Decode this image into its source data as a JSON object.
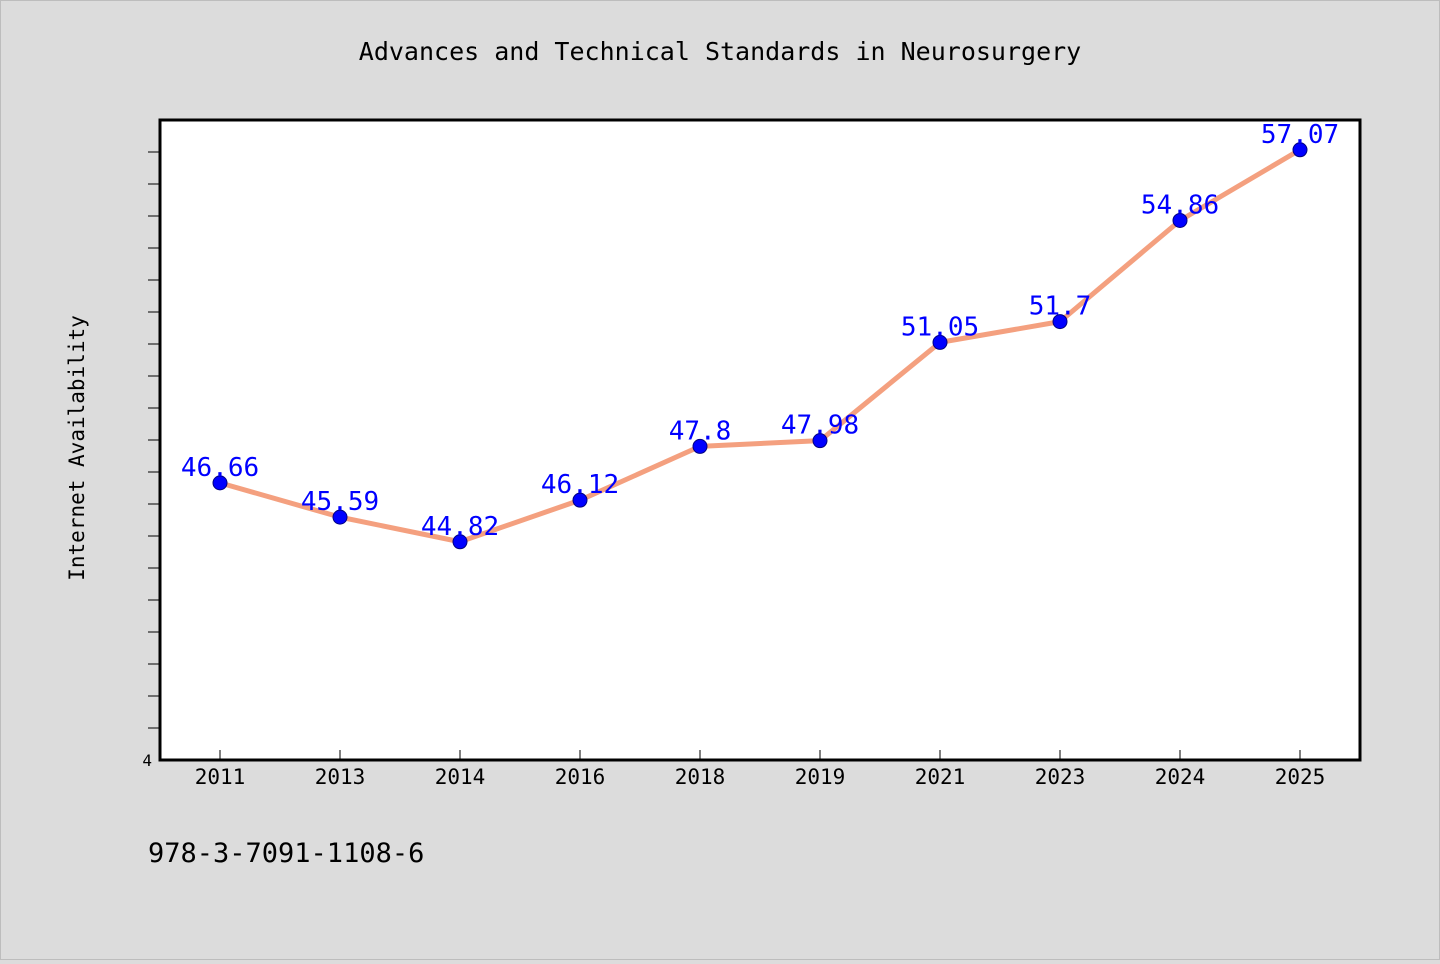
{
  "chart_data": {
    "type": "line",
    "title": "Advances and Technical Standards in Neurosurgery",
    "xlabel": "",
    "ylabel": "Internet Availability",
    "categories": [
      "2011",
      "2013",
      "2014",
      "2016",
      "2018",
      "2019",
      "2021",
      "2023",
      "2024",
      "2025"
    ],
    "series": [
      {
        "values": [
          46.66,
          45.59,
          44.82,
          46.12,
          47.8,
          47.98,
          51.05,
          51.7,
          54.86,
          57.07
        ],
        "data_labels": [
          "46.66",
          "45.59",
          "44.82",
          "46.12",
          "47.8",
          "47.98",
          "51.05",
          "51.7",
          "54.86",
          "57.07"
        ]
      }
    ],
    "y_tick_label": "4",
    "ylim": [
      38,
      58
    ],
    "grid": false,
    "legend": "none",
    "colors": {
      "line": "#f4a07f",
      "marker": "#0000ff",
      "marker_edge": "#000080",
      "data_label": "#0000ff",
      "plot_background": "#ffffff",
      "page_background": "#dcdcdc"
    }
  },
  "footer": {
    "isbn": "978-3-7091-1108-6"
  }
}
